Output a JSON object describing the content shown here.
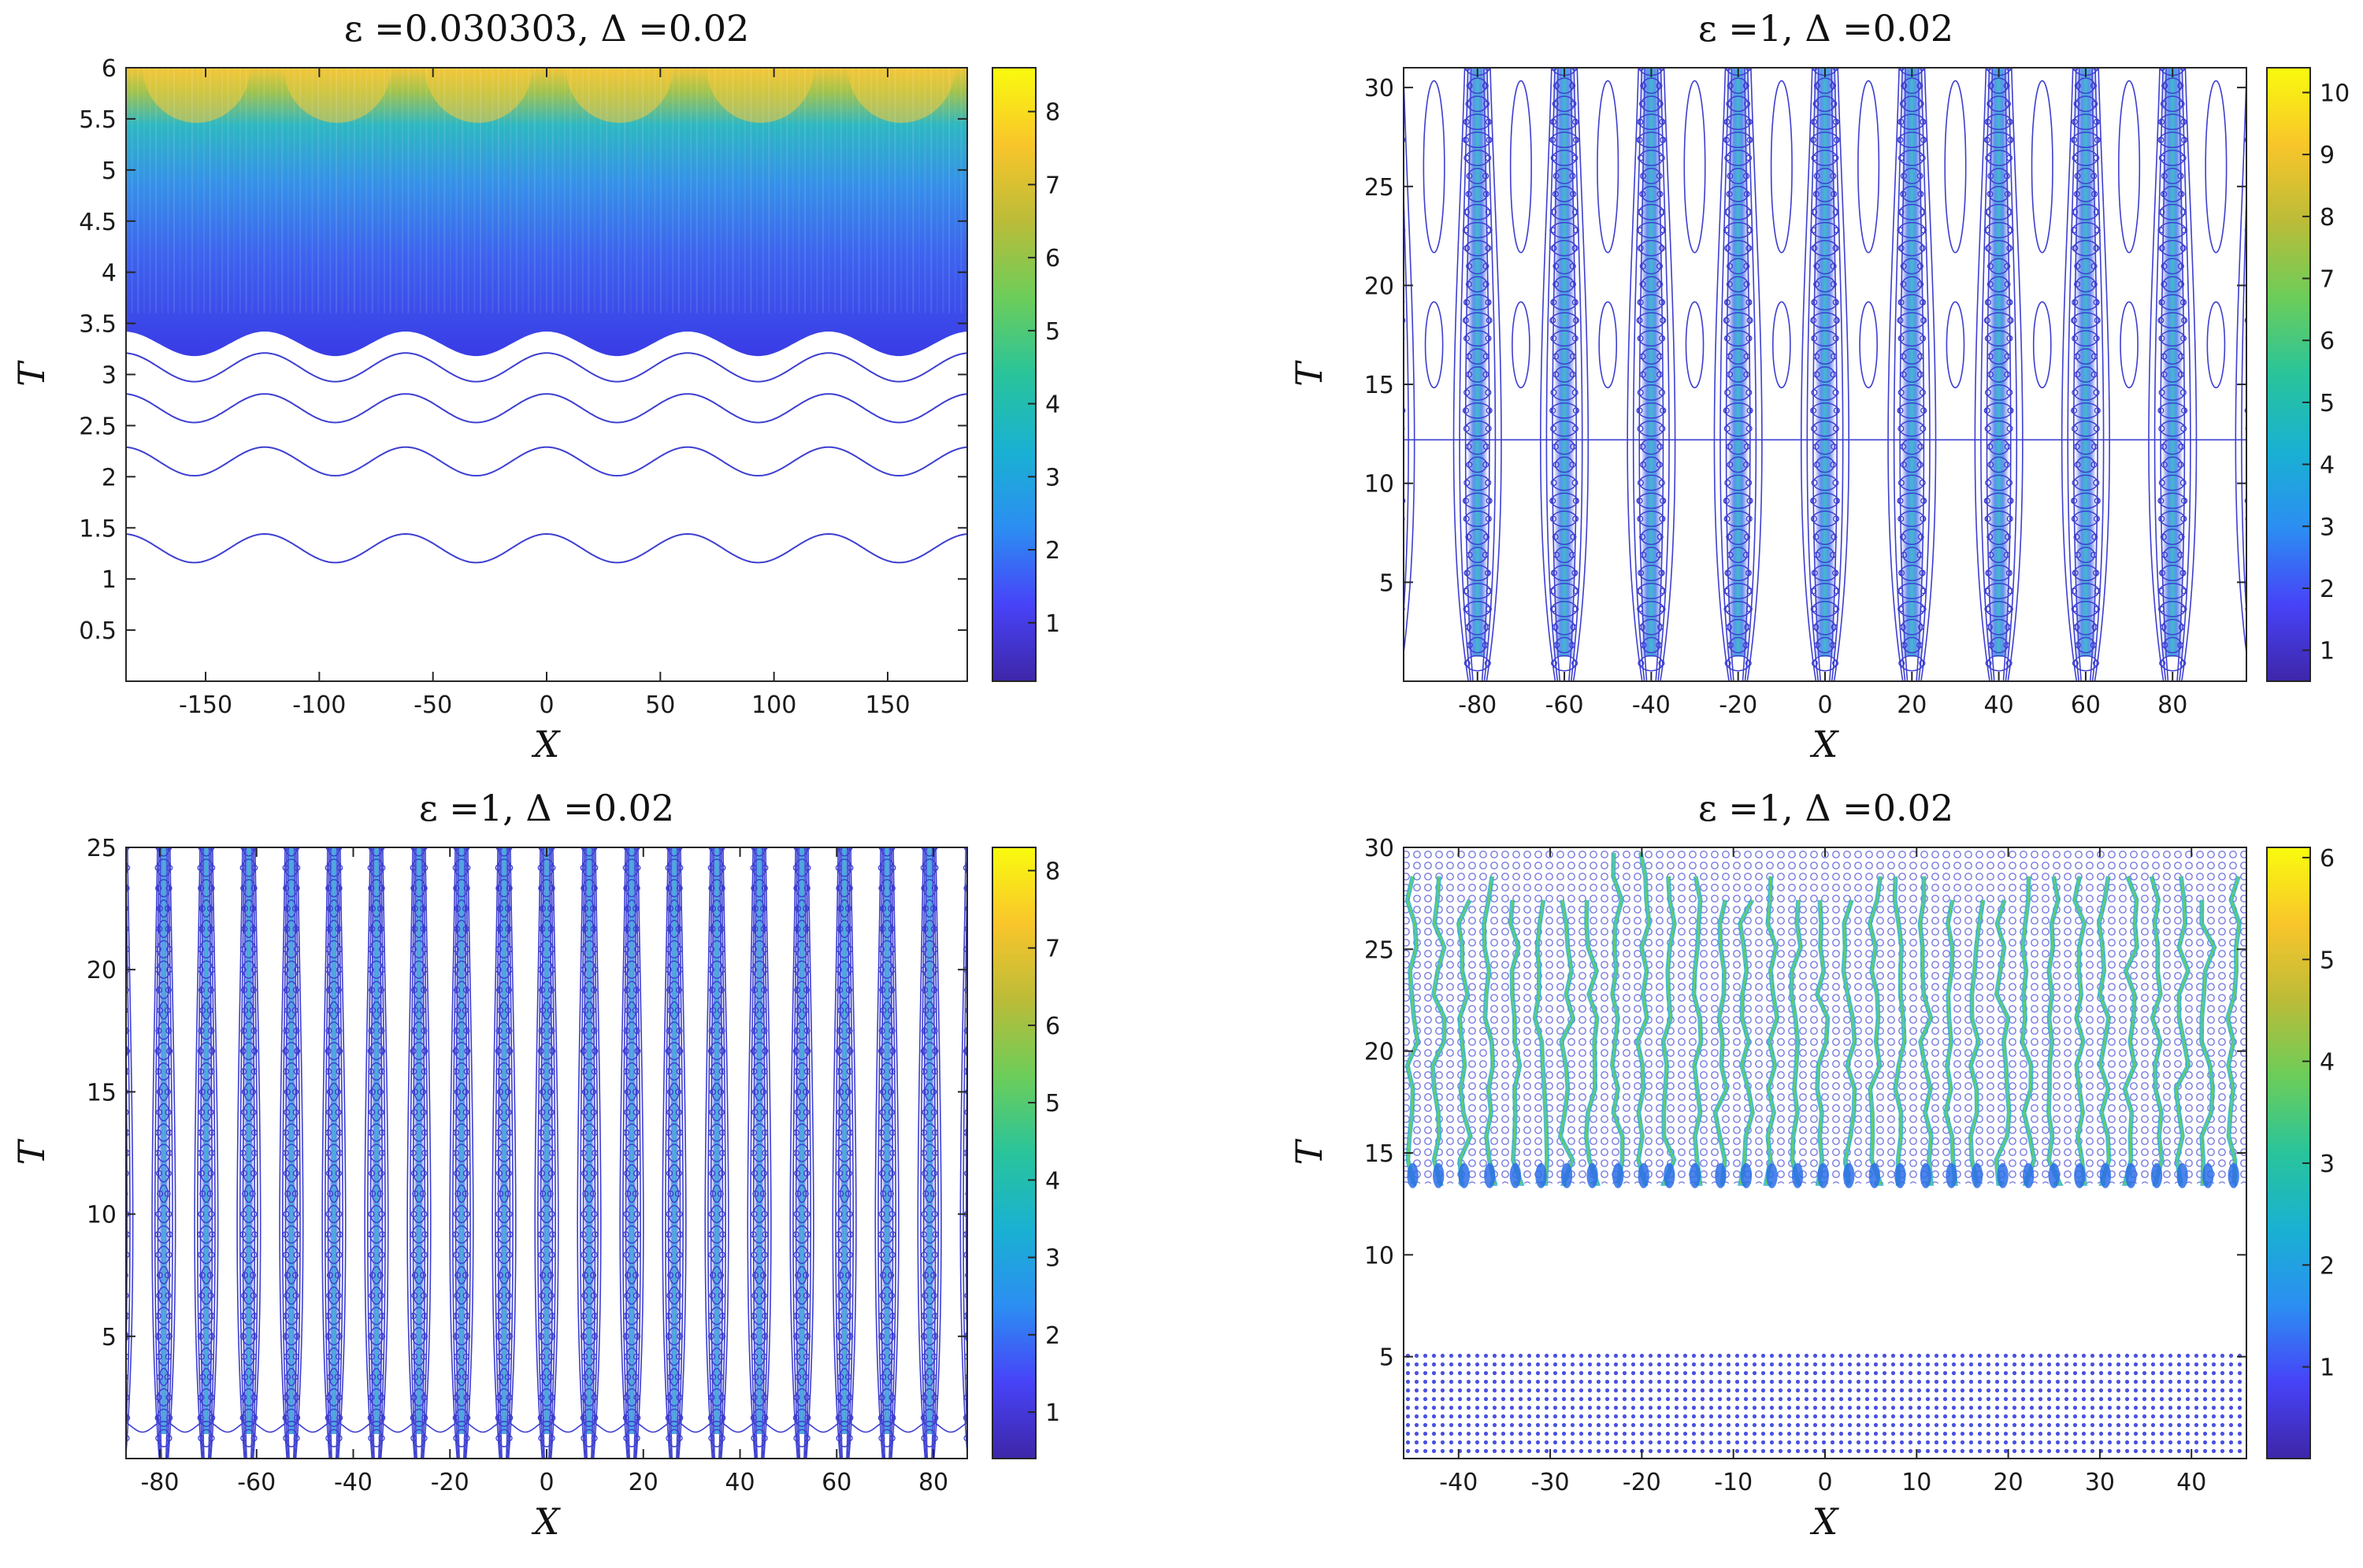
{
  "colors": {
    "contour": "#3d3fd0",
    "frame": "#262626",
    "colormap": [
      "#3e26a8",
      "#4743f8",
      "#2c8ef2",
      "#19b1d2",
      "#29c49b",
      "#6ccd5a",
      "#bbbc38",
      "#f9c52b",
      "#f9fb0e"
    ]
  },
  "chart_data": [
    {
      "type": "heatmap",
      "panel": "top-left",
      "title": "ε =0.030303, Δ =0.02",
      "xlabel": "X",
      "ylabel": "T",
      "xlim": [
        -185,
        185
      ],
      "ylim": [
        0,
        6
      ],
      "xticks": [
        -150,
        -100,
        -50,
        0,
        50,
        100,
        150
      ],
      "yticks": [
        0.5,
        1,
        1.5,
        2,
        2.5,
        3,
        3.5,
        4,
        4.5,
        5,
        5.5,
        6
      ],
      "colorbar": {
        "range": [
          0.2,
          8.6
        ],
        "ticks": [
          1,
          2,
          3,
          4,
          5,
          6,
          7,
          8
        ]
      },
      "contour_levels_T": [
        1.3,
        2.15,
        2.67,
        3.07
      ],
      "wave_period_X": 62,
      "filled_region_start_T": 3.3
    },
    {
      "type": "heatmap",
      "panel": "top-right",
      "title": "ε =1, Δ =0.02",
      "xlabel": "X",
      "ylabel": "T",
      "xlim": [
        -97,
        97
      ],
      "ylim": [
        0,
        31
      ],
      "xticks": [
        -80,
        -60,
        -40,
        -20,
        0,
        20,
        40,
        60,
        80
      ],
      "yticks": [
        5,
        10,
        15,
        20,
        25,
        30
      ],
      "colorbar": {
        "range": [
          0.5,
          10.4
        ],
        "ticks": [
          1,
          2,
          3,
          4,
          5,
          6,
          7,
          8,
          9,
          10
        ]
      },
      "column_spacing_X": 20,
      "column_centers_X": [
        -88,
        -78,
        -58,
        -39,
        -19,
        0,
        19,
        39,
        58,
        78,
        88
      ]
    },
    {
      "type": "heatmap",
      "panel": "bottom-left",
      "title": "ε =1, Δ =0.02",
      "xlabel": "X",
      "ylabel": "T",
      "xlim": [
        -87,
        87
      ],
      "ylim": [
        0,
        25
      ],
      "xticks": [
        -80,
        -60,
        -40,
        -20,
        0,
        20,
        40,
        60,
        80
      ],
      "yticks": [
        5,
        10,
        15,
        20,
        25
      ],
      "colorbar": {
        "range": [
          0.4,
          8.3
        ],
        "ticks": [
          1,
          2,
          3,
          4,
          5,
          6,
          7,
          8
        ]
      },
      "column_spacing_X": 8.8
    },
    {
      "type": "heatmap",
      "panel": "bottom-right",
      "title": "ε =1, Δ =0.02",
      "xlabel": "X",
      "ylabel": "T",
      "xlim": [
        -46,
        46
      ],
      "ylim": [
        0,
        30
      ],
      "xticks": [
        -40,
        -30,
        -20,
        -10,
        0,
        10,
        20,
        30,
        40
      ],
      "yticks": [
        5,
        10,
        15,
        20,
        25,
        30
      ],
      "colorbar": {
        "range": [
          0.1,
          6.1
        ],
        "ticks": [
          1,
          2,
          3,
          4,
          5,
          6
        ]
      },
      "column_spacing_X": 2.8,
      "transition_T": 13.5
    }
  ]
}
